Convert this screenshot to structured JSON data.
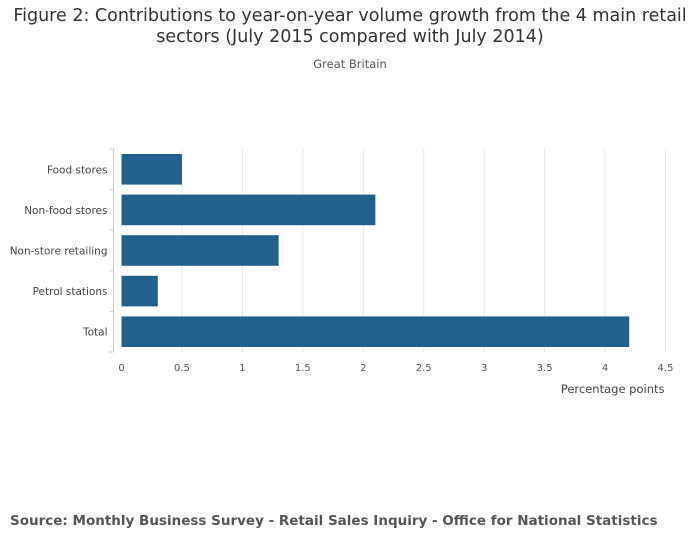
{
  "title": "Figure 2: Contributions to year-on-year volume growth from the 4 main retail sectors (July 2015 compared with July 2014)",
  "subtitle": "Great Britain",
  "source": "Source: Monthly Business Survey - Retail Sales Inquiry - Office for National Statistics",
  "chart_data": {
    "type": "bar",
    "orientation": "horizontal",
    "categories": [
      "Food stores",
      "Non-food stores",
      "Non-store retailing",
      "Petrol stations",
      "Total"
    ],
    "values": [
      0.5,
      2.1,
      1.3,
      0.3,
      4.2
    ],
    "xlabel": "Percentage points",
    "ylabel": "",
    "xlim": [
      0,
      4.5
    ],
    "xticks": [
      "0",
      "0.5",
      "1",
      "1.5",
      "2",
      "2.5",
      "3",
      "3.5",
      "4",
      "4.5"
    ],
    "bar_color": "#20608f",
    "grid": true,
    "legend": false
  }
}
